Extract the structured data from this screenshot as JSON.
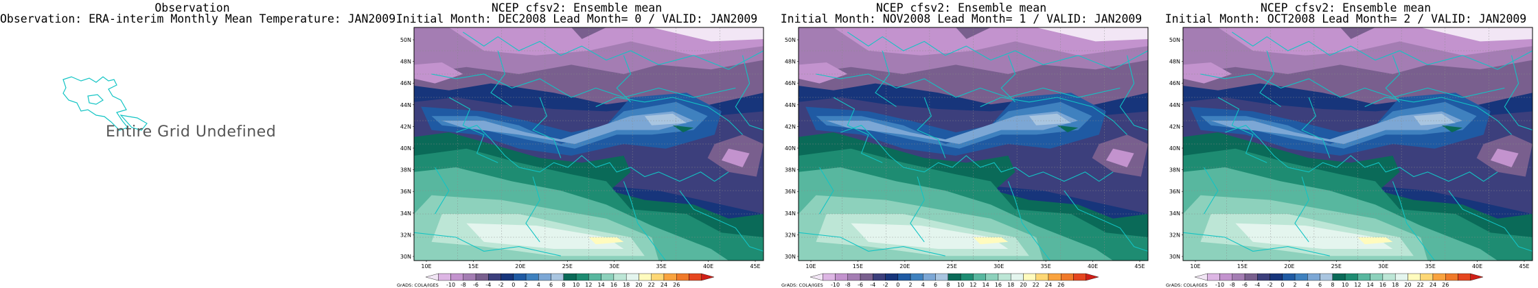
{
  "observation_panel": {
    "title": "Observation",
    "subtitle": "Observation: ERA-interim Monthly Mean Temperature: JAN2009",
    "message": "Entire Grid Undefined"
  },
  "forecast_panels": [
    {
      "title": "NCEP cfsv2: Ensemble mean",
      "subtitle": "Initial Month: DEC2008   Lead Month= 0 / VALID: JAN2009"
    },
    {
      "title": "NCEP cfsv2: Ensemble mean",
      "subtitle": "Initial Month: NOV2008   Lead Month= 1 / VALID: JAN2009"
    },
    {
      "title": "NCEP cfsv2: Ensemble mean",
      "subtitle": "Initial Month: OCT2008   Lead Month= 2 / VALID: JAN2009"
    }
  ],
  "map_axes": {
    "lat_ticks": [
      "50N",
      "48N",
      "46N",
      "44N",
      "42N",
      "40N",
      "38N",
      "36N",
      "34N",
      "32N",
      "30N"
    ],
    "lon_ticks": [
      "10E",
      "15E",
      "20E",
      "25E",
      "30E",
      "35E",
      "40E",
      "45E"
    ]
  },
  "colorbar": {
    "credit": "GrADS: COLA/IGES",
    "levels": [
      "-10",
      "-8",
      "-6",
      "-4",
      "-2",
      "0",
      "2",
      "4",
      "6",
      "8",
      "10",
      "12",
      "14",
      "16",
      "18",
      "20",
      "22",
      "24",
      "26"
    ],
    "colors": [
      "#f2e6f5",
      "#ddb6e4",
      "#c393ce",
      "#a47db3",
      "#795f8e",
      "#3c3f7c",
      "#17357b",
      "#1f5aa3",
      "#3f81bf",
      "#7ca7d5",
      "#a9c5e0",
      "#0a6a58",
      "#1e8c72",
      "#58b79f",
      "#8dd1bc",
      "#bde6d6",
      "#e4f5ee",
      "#fffbbe",
      "#fdd775",
      "#f9a33f",
      "#f07a2a",
      "#e5461f",
      "#cf1f17"
    ]
  },
  "colors": {
    "coast": "#12c4c4",
    "frame": "#000000"
  }
}
